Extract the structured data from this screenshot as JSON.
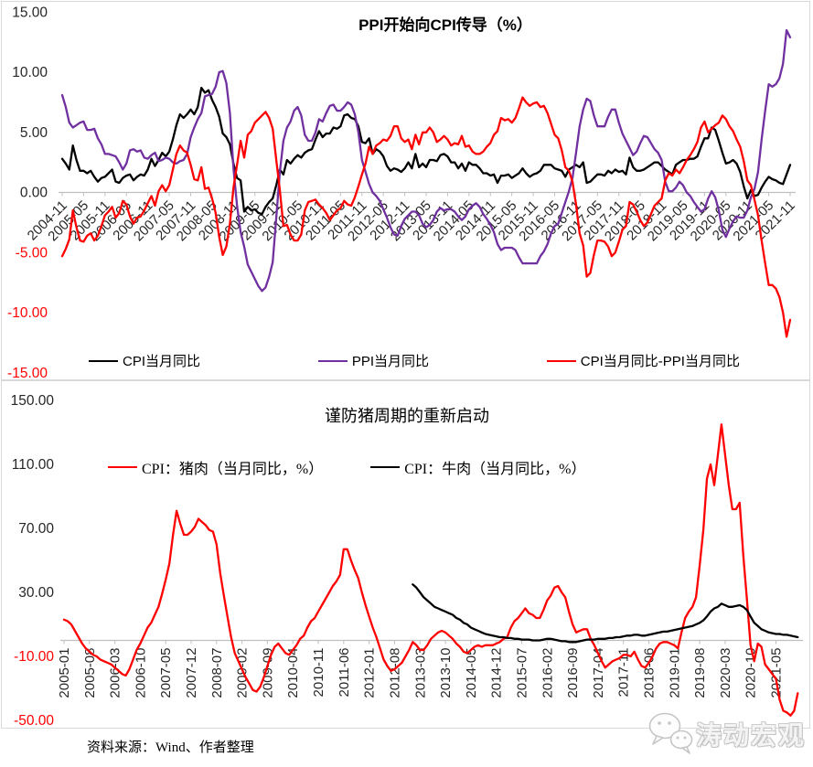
{
  "footer": {
    "source": "资料来源：Wind、作者整理",
    "logo_text": "涛动宏观"
  },
  "colors": {
    "cpi": "#000000",
    "ppi": "#7030A0",
    "diff": "#FF0000",
    "pork": "#FF0000",
    "beef": "#000000",
    "axis": "#BFBFBF",
    "negative_tick_label": "#FF0000",
    "tick_label": "#262626"
  },
  "charts": [
    {
      "title": "PPI开始向CPI传导（%）",
      "y_axis": {
        "ticks": [
          "15.00",
          "10.00",
          "5.00",
          "0.00",
          "-5.00",
          "-10.00",
          "-15.00"
        ],
        "negatives_red": true
      },
      "label_every": 6,
      "x_labels": [
        "2004-11",
        "2005-05",
        "2005-11",
        "2006-05",
        "2006-11",
        "2007-05",
        "2007-11",
        "2008-05",
        "2008-11",
        "2009-05",
        "2009-11",
        "2010-05",
        "2010-11",
        "2011-05",
        "2011-11",
        "2012-05",
        "2012-11",
        "2013-05",
        "2013-11",
        "2014-05",
        "2014-11",
        "2015-05",
        "2015-11",
        "2016-05",
        "2016-11",
        "2017-05",
        "2017-11",
        "2018-05",
        "2018-11",
        "2019-05",
        "2019-11",
        "2020-05",
        "2020-11",
        "2021-05",
        "2021-11"
      ],
      "chart_data": {
        "type": "line",
        "x_start": "2004-11",
        "x_end": "2021-11",
        "x_freq": "monthly",
        "ylim": [
          -15,
          15
        ],
        "grid": false,
        "legend_position": "bottom",
        "series": [
          {
            "name": "CPI当月同比",
            "color": "#000000",
            "values": [
              2.8,
              2.4,
              1.9,
              3.9,
              2.7,
              1.8,
              1.8,
              1.6,
              1.8,
              1.3,
              0.9,
              1.2,
              1.3,
              1.6,
              1.9,
              0.9,
              0.8,
              1.2,
              1.4,
              1.5,
              1.0,
              1.3,
              1.5,
              1.4,
              1.9,
              2.8,
              2.2,
              2.7,
              3.3,
              3.0,
              3.4,
              4.4,
              5.6,
              6.5,
              6.2,
              6.5,
              6.9,
              6.5,
              7.1,
              8.7,
              8.3,
              8.5,
              7.7,
              7.1,
              6.3,
              4.9,
              4.6,
              4.0,
              2.4,
              1.2,
              1.0,
              -1.6,
              -1.2,
              -1.5,
              -1.4,
              -1.7,
              -1.8,
              -1.2,
              -0.8,
              -0.5,
              0.6,
              1.9,
              1.5,
              2.7,
              2.4,
              2.8,
              3.1,
              2.9,
              3.3,
              3.5,
              3.6,
              4.4,
              5.1,
              4.6,
              4.9,
              4.9,
              5.4,
              5.3,
              5.5,
              6.4,
              6.5,
              6.2,
              6.1,
              5.5,
              4.2,
              4.1,
              4.5,
              3.2,
              3.6,
              3.4,
              3.0,
              2.2,
              1.8,
              2.0,
              1.9,
              1.7,
              2.0,
              2.5,
              2.0,
              3.2,
              2.1,
              2.4,
              2.1,
              2.7,
              2.7,
              2.6,
              3.1,
              3.2,
              3.0,
              2.5,
              2.5,
              2.0,
              2.4,
              1.8,
              2.5,
              2.3,
              2.3,
              2.0,
              1.6,
              1.6,
              1.4,
              1.5,
              0.8,
              1.4,
              1.4,
              1.5,
              1.2,
              1.4,
              1.6,
              2.0,
              1.6,
              1.3,
              1.5,
              1.6,
              1.8,
              2.3,
              2.3,
              2.3,
              2.0,
              1.9,
              1.8,
              1.3,
              1.9,
              2.1,
              2.3,
              2.1,
              2.5,
              0.8,
              0.9,
              1.2,
              1.5,
              1.5,
              1.4,
              1.8,
              1.6,
              1.9,
              1.7,
              1.8,
              1.5,
              2.9,
              2.1,
              1.8,
              1.8,
              1.9,
              2.1,
              2.3,
              2.5,
              2.5,
              2.2,
              1.9,
              1.7,
              1.5,
              2.3,
              2.5,
              2.7,
              2.7,
              2.8,
              2.8,
              3.0,
              3.8,
              4.5,
              4.5,
              5.4,
              5.2,
              4.3,
              3.3,
              2.4,
              2.5,
              2.7,
              2.4,
              1.7,
              0.5,
              -0.5,
              0.2,
              -0.3,
              -0.2,
              0.4,
              0.9,
              1.3,
              1.1,
              1.0,
              0.8,
              0.7,
              1.5,
              2.3
            ]
          },
          {
            "name": "PPI当月同比",
            "color": "#7030A0",
            "values": [
              8.1,
              7.1,
              5.8,
              5.4,
              5.6,
              5.8,
              5.9,
              5.2,
              5.2,
              5.3,
              4.5,
              4.0,
              3.2,
              3.2,
              3.1,
              3.0,
              2.5,
              1.9,
              2.4,
              3.5,
              3.6,
              3.4,
              3.5,
              2.9,
              2.8,
              3.1,
              3.3,
              2.6,
              2.7,
              2.9,
              2.8,
              2.5,
              2.4,
              2.6,
              2.7,
              3.2,
              4.6,
              5.4,
              6.1,
              6.6,
              8.0,
              8.1,
              8.2,
              8.8,
              10.0,
              10.1,
              9.1,
              6.6,
              2.0,
              -1.1,
              -3.3,
              -4.5,
              -6.0,
              -6.6,
              -7.2,
              -7.8,
              -8.2,
              -7.9,
              -7.0,
              -5.8,
              -2.1,
              1.7,
              4.3,
              5.4,
              5.9,
              6.8,
              7.1,
              6.4,
              4.8,
              4.3,
              4.3,
              5.0,
              6.1,
              5.9,
              6.6,
              7.2,
              7.3,
              6.8,
              6.8,
              7.1,
              7.5,
              7.3,
              6.5,
              5.0,
              2.7,
              1.7,
              0.7,
              0.0,
              -0.3,
              -0.7,
              -1.4,
              -2.1,
              -2.9,
              -3.5,
              -3.6,
              -2.8,
              -2.2,
              -1.9,
              -1.6,
              -1.6,
              -1.9,
              -2.6,
              -2.9,
              -2.7,
              -2.3,
              -1.6,
              -1.3,
              -1.5,
              -1.4,
              -1.4,
              -1.6,
              -2.0,
              -2.3,
              -2.0,
              -1.4,
              -1.1,
              -0.9,
              -1.2,
              -1.8,
              -2.2,
              -2.7,
              -3.3,
              -4.3,
              -4.8,
              -4.6,
              -4.6,
              -4.6,
              -4.8,
              -5.4,
              -5.9,
              -5.9,
              -5.9,
              -5.9,
              -5.9,
              -5.3,
              -4.9,
              -4.3,
              -3.4,
              -2.8,
              -2.6,
              -1.7,
              -0.8,
              0.1,
              1.2,
              3.3,
              5.5,
              6.9,
              7.8,
              7.6,
              6.4,
              5.5,
              5.5,
              5.5,
              6.3,
              6.9,
              6.9,
              5.8,
              4.9,
              4.3,
              3.7,
              3.1,
              3.4,
              4.1,
              4.7,
              4.6,
              4.1,
              3.6,
              3.3,
              2.7,
              0.9,
              0.1,
              0.1,
              0.4,
              0.9,
              0.6,
              0.0,
              -0.3,
              -0.8,
              -1.2,
              -1.6,
              -1.4,
              -0.5,
              0.1,
              -0.4,
              -1.5,
              -3.1,
              -3.7,
              -3.0,
              -2.4,
              -2.0,
              -2.1,
              -2.1,
              -1.5,
              -0.4,
              0.3,
              1.7,
              4.4,
              6.8,
              9.0,
              8.8,
              9.0,
              9.5,
              10.7,
              13.5,
              12.9
            ]
          },
          {
            "name": "CPI当月同比-PPI当月同比",
            "color": "#FF0000",
            "derived": "difference",
            "formula": "CPI当月同比 − PPI当月同比",
            "derived_from": [
              0,
              1
            ]
          }
        ]
      }
    },
    {
      "title": "谨防猪周期的重新启动",
      "y_axis": {
        "ticks": [
          "150.00",
          "110.00",
          "70.00",
          "30.00",
          "-10.00",
          "-50.00"
        ],
        "negatives_red": true
      },
      "label_every": 7,
      "x_labels": [
        "2005-01",
        "2005-08",
        "2006-03",
        "2006-10",
        "2007-05",
        "2007-12",
        "2008-07",
        "2009-02",
        "2009-09",
        "2010-04",
        "2010-11",
        "2011-06",
        "2012-01",
        "2012-08",
        "2013-03",
        "2013-10",
        "2014-05",
        "2014-12",
        "2015-07",
        "2016-02",
        "2016-09",
        "2017-04",
        "2017-11",
        "2018-06",
        "2019-01",
        "2019-08",
        "2020-03",
        "2020-10",
        "2021-05"
      ],
      "chart_data": {
        "type": "line",
        "x_start": "2005-01",
        "x_end": "2021-11",
        "x_freq": "monthly",
        "ylim": [
          -50,
          150
        ],
        "grid": false,
        "legend_position": "top-inside",
        "series": [
          {
            "name": "CPI：猪肉（当月同比，%）",
            "color": "#FF0000",
            "values": [
              13,
              12,
              10,
              6,
              2,
              -2,
              -5,
              -7,
              -9,
              -10,
              -12,
              -13,
              -14,
              -15,
              -17,
              -19,
              -21,
              -22,
              -18,
              -12,
              -6,
              -2,
              3,
              8,
              11,
              16,
              21,
              29,
              38,
              48,
              66,
              81,
              73,
              66,
              66,
              68,
              71,
              76,
              74,
              72,
              69,
              68,
              60,
              42,
              28,
              15,
              2,
              -8,
              -13,
              -18,
              -23,
              -27,
              -31,
              -32,
              -29,
              -23,
              -16,
              -9,
              -4,
              -2,
              -5,
              -8,
              -9,
              -6,
              -3,
              1,
              3,
              8,
              12,
              14,
              18,
              22,
              26,
              30,
              34,
              37,
              41,
              57,
              57,
              50,
              44,
              39,
              30,
              22,
              15,
              8,
              2,
              -5,
              -12,
              -16,
              -19,
              -18,
              -16,
              -14,
              -10,
              -6,
              -1,
              -3,
              -6,
              -6,
              -3,
              1,
              3,
              5,
              6,
              5,
              3,
              1,
              -2,
              -4,
              -7,
              -8,
              -6,
              -4,
              -3,
              -4,
              -3,
              -3,
              -3,
              -2,
              -1,
              1,
              2,
              8,
              12,
              14,
              17,
              20,
              17,
              16,
              14,
              14,
              19,
              25,
              28,
              33,
              34,
              30,
              27,
              18,
              10,
              5,
              6,
              7,
              7,
              1,
              -3,
              -8,
              -13,
              -17,
              -15,
              -13,
              -12,
              -11,
              -9,
              -9,
              -10,
              -7,
              -12,
              -16,
              -17,
              -14,
              -10,
              -5,
              -2,
              -1,
              -1,
              -2,
              -3,
              -5,
              5,
              14,
              18,
              21,
              27,
              47,
              69,
              101,
              110,
              97,
              116,
              135,
              116,
              97,
              82,
              82,
              86,
              53,
              26,
              -3,
              -13,
              -2,
              -4,
              -15,
              -18,
              -21,
              -24,
              -37,
              -44,
              -45,
              -47,
              -44,
              -33
            ]
          },
          {
            "name": "CPI：牛肉（当月同比，%）",
            "color": "#000000",
            "start_index": 96,
            "start_x": "2013-01",
            "values": [
              35,
              33,
              30,
              27,
              25,
              23,
              21,
              20,
              19,
              18,
              17,
              16,
              14,
              13,
              11,
              10,
              8,
              7,
              6,
              5,
              4,
              3.5,
              3,
              2.5,
              2,
              2,
              1.5,
              1.5,
              1,
              1,
              0.5,
              0.5,
              0.5,
              0,
              0,
              0,
              0.5,
              1,
              1,
              0.5,
              0,
              -0.5,
              -0.5,
              -1,
              -1,
              -1,
              -0.5,
              0,
              0.5,
              0.5,
              0.5,
              1,
              1,
              1,
              1.5,
              1.5,
              2,
              2,
              2.5,
              3,
              3,
              3.5,
              3.5,
              3,
              3,
              3.5,
              4,
              4.5,
              5,
              5.5,
              5.5,
              6,
              6.5,
              7,
              7.5,
              8,
              8.5,
              9,
              10,
              11,
              12.5,
              15,
              18,
              20,
              21,
              23,
              22,
              21,
              21,
              21.5,
              22,
              21,
              19,
              15,
              11,
              9,
              7,
              6,
              5,
              4.5,
              4,
              4,
              3.5,
              3.5,
              3,
              2.5,
              2
            ]
          }
        ]
      }
    }
  ]
}
